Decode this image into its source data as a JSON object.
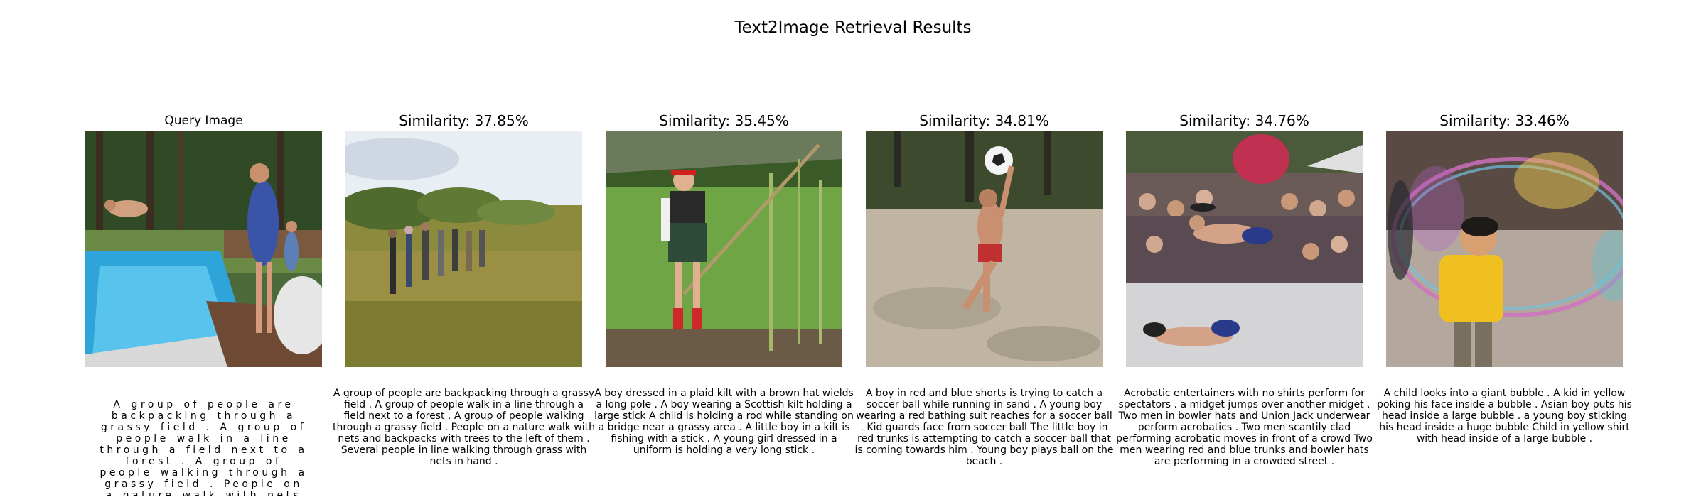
{
  "figure": {
    "title": "Text2Image Retrieval Results"
  },
  "query": {
    "title": "Query Image",
    "caption": "A group of people are backpacking through a grassy field . A group of people walk in a line through a field next to a forest . A group of people walking through a grassy field . People on a nature walk with nets and backpacks wi"
  },
  "results": [
    {
      "title": "Similarity: 37.85%",
      "similarity": 37.85,
      "caption": "A group of people are backpacking through a grassy field . A group of people walk in a line through a field next to a forest . A group of people walking through a grassy field . People on a nature walk with nets and backpacks with trees to the left of them . Several people in line walking through grass with nets in hand ."
    },
    {
      "title": "Similarity: 35.45%",
      "similarity": 35.45,
      "caption": "A boy dressed in a plaid kilt with a brown hat wields a long pole . A boy wearing a Scottish kilt holding a large stick A child is holding a rod while standing on a bridge near a grassy area . A little boy in a kilt is fishing with a stick . A young girl dressed in a uniform is holding a very long stick ."
    },
    {
      "title": "Similarity: 34.81%",
      "similarity": 34.81,
      "caption": "A boy in red and blue shorts is trying to catch a soccer ball while running in sand . A young boy wearing a red bathing suit reaches for a soccer ball . Kid guards face from soccer ball The little boy in red trunks is attempting to catch a soccer ball that is coming towards him . Young boy plays ball on the beach ."
    },
    {
      "title": "Similarity: 34.76%",
      "similarity": 34.76,
      "caption": "Acrobatic entertainers with no shirts perform for spectators . a midget jumps over another midget . Two men in bowler hats and Union Jack underwear perform acrobatics . Two men scantily clad performing acrobatic moves in front of a crowd Two men wearing red and blue trunks and bowler hats are performing in a crowded street ."
    },
    {
      "title": "Similarity: 33.46%",
      "similarity": 33.46,
      "caption": "A child looks into a giant bubble . A kid in yellow poking his face inside a bubble . Asian boy puts his head inside a large bubble . a young boy sticking his head inside a huge bubble Child in yellow shirt with head inside of a large bubble ."
    }
  ]
}
